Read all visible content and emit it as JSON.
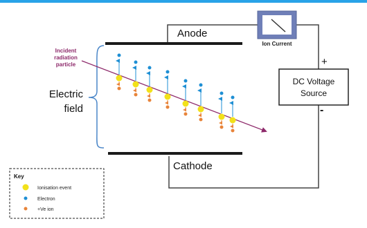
{
  "labels": {
    "anode": "Anode",
    "cathode": "Cathode",
    "ion_current": "Ion Current",
    "plus": "+",
    "minus": "-",
    "dc_line1": "DC Voltage",
    "dc_line2": "Source",
    "incident_line1": "Incident",
    "incident_line2": "radiation",
    "incident_line3": "particle",
    "field_line1": "Electric",
    "field_line2": "field"
  },
  "key": {
    "title": "Key",
    "items": [
      {
        "label": "Ionisation event",
        "color": "#f2e11a",
        "size": "large"
      },
      {
        "label": "Electron",
        "color": "#1e8fd4",
        "size": "small"
      },
      {
        "label": "+Ve ion",
        "color": "#e8843a",
        "size": "small"
      }
    ]
  },
  "colors": {
    "bar": "#29a3e8",
    "plate": "#1a1a1a",
    "particle": "#8e2a6b",
    "event": "#f2e11a",
    "electron": "#1e8fd4",
    "ion": "#e8843a",
    "arrow": "#1e8fd4",
    "meter_frame": "#6f7fb8",
    "brace": "#4a86c8"
  }
}
